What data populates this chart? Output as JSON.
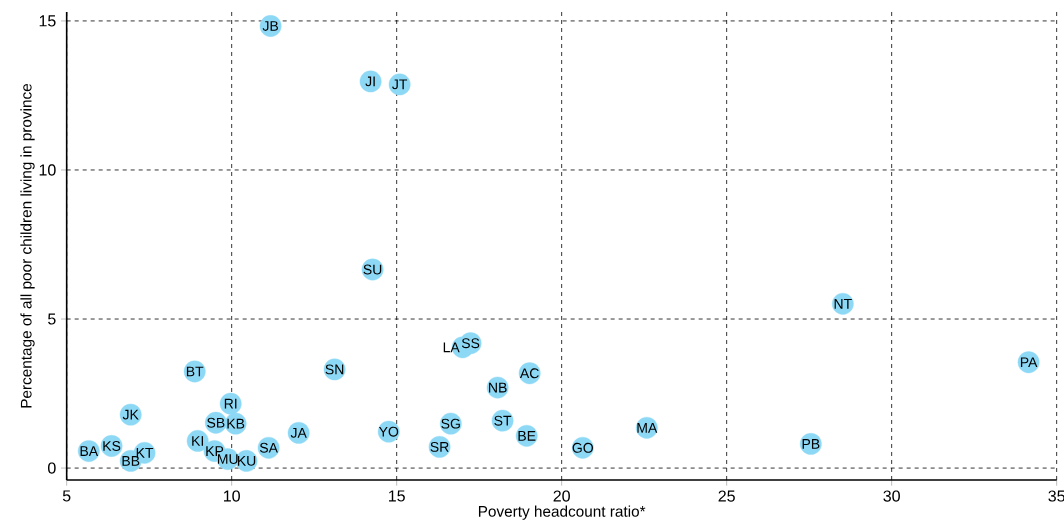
{
  "chart_data": {
    "type": "scatter",
    "xlabel": "Poverty headcount ratio*",
    "ylabel": "Percentage of all poor children living in province",
    "xlim": [
      5,
      35
    ],
    "ylim": [
      -0.4,
      15.3
    ],
    "xticks": [
      5,
      10,
      15,
      20,
      25,
      30,
      35
    ],
    "yticks": [
      0,
      5,
      10,
      15
    ],
    "grid": true,
    "marker": "circle",
    "color": "#8dd8f5",
    "x": [
      11.18,
      14.21,
      15.09,
      14.27,
      28.52,
      34.15,
      17.0,
      17.24,
      19.03,
      18.06,
      18.21,
      16.64,
      18.94,
      16.3,
      20.64,
      22.58,
      27.55,
      14.76,
      13.12,
      8.88,
      12.03,
      11.12,
      9.48,
      9.88,
      10.45,
      8.97,
      9.52,
      10.12,
      9.97,
      6.94,
      7.36,
      6.94,
      6.36,
      5.67
    ],
    "values": [
      14.83,
      12.97,
      12.87,
      6.66,
      5.51,
      3.55,
      4.05,
      4.19,
      3.18,
      2.7,
      1.59,
      1.49,
      1.08,
      0.71,
      0.68,
      1.35,
      0.81,
      1.22,
      3.31,
      3.24,
      1.18,
      0.68,
      0.57,
      0.3,
      0.24,
      0.91,
      1.52,
      1.49,
      2.16,
      1.79,
      0.51,
      0.24,
      0.74,
      0.57
    ],
    "value_labels": [
      "JB",
      "JI",
      "JT",
      "SU",
      "NT",
      "PA",
      "LA",
      "SS",
      "AC",
      "NB",
      "ST",
      "SG",
      "BE",
      "SR",
      "GO",
      "MA",
      "PB",
      "YO",
      "SN",
      "BT",
      "JA",
      "SA",
      "KP",
      "MU",
      "KU",
      "KI",
      "SB",
      "KB",
      "RI",
      "JK",
      "KT",
      "BB",
      "KS",
      "BA"
    ]
  }
}
